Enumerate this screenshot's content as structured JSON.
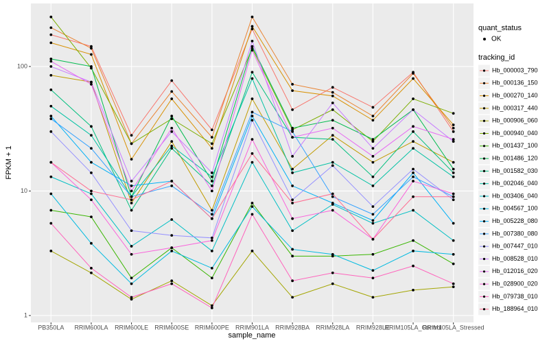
{
  "chart_data": {
    "type": "line",
    "y_scale": "log",
    "grid": true,
    "x_label": "sample_name",
    "y_label": "FPKM + 1",
    "categories": [
      "PB350LA",
      "RRIM600LA",
      "RRIM600LE",
      "RRIM600SE",
      "RRIM600PE",
      "RRIM901LA",
      "RRIM928BA",
      "RRIM928LA",
      "RRIM928LE",
      "RRIM105LA_Control",
      "RRIM105LA_Stressed"
    ],
    "ylim": [
      0.88,
      321
    ],
    "yticks": [
      1,
      10,
      100
    ],
    "point_legend_title": "quant_status",
    "point_legend_label": "OK",
    "legend_title": "tracking_id",
    "series": [
      {
        "name": "Hb_000003_790",
        "color": "#F8766D",
        "values": [
          180,
          145,
          28,
          77,
          31,
          200,
          45,
          68,
          47,
          90,
          30
        ]
      },
      {
        "name": "Hb_000136_150",
        "color": "#EA8331",
        "values": [
          205,
          140,
          24,
          63,
          27,
          250,
          72,
          62,
          40,
          88,
          32
        ]
      },
      {
        "name": "Hb_000270_140",
        "color": "#D89000",
        "values": [
          155,
          125,
          18,
          55,
          22,
          210,
          64,
          58,
          37,
          80,
          34
        ]
      },
      {
        "name": "Hb_000317_440",
        "color": "#C09B00",
        "values": [
          85,
          75,
          8,
          25,
          7,
          55,
          15,
          28,
          17,
          25,
          17
        ]
      },
      {
        "name": "Hb_000906_060",
        "color": "#A3A500",
        "values": [
          3.3,
          2.2,
          1.35,
          1.9,
          1.2,
          3.3,
          1.4,
          1.8,
          1.4,
          1.6,
          1.7
        ]
      },
      {
        "name": "Hb_000940_040",
        "color": "#7CAE00",
        "values": [
          250,
          97,
          24,
          38,
          24,
          140,
          31,
          45,
          25,
          55,
          42
        ]
      },
      {
        "name": "Hb_001437_100",
        "color": "#39B600",
        "values": [
          7,
          6.2,
          2,
          3.5,
          2,
          8,
          3,
          3,
          3.1,
          4,
          2.6
        ]
      },
      {
        "name": "Hb_001486_120",
        "color": "#00BB4E",
        "values": [
          115,
          100,
          9,
          40,
          12,
          145,
          32,
          37,
          26,
          45,
          15
        ]
      },
      {
        "name": "Hb_001582_030",
        "color": "#00BF7D",
        "values": [
          65,
          33,
          7,
          22,
          11,
          90,
          27,
          26,
          13,
          30,
          14
        ]
      },
      {
        "name": "Hb_002046_040",
        "color": "#00C1A3",
        "values": [
          48,
          28,
          9,
          23,
          13,
          80,
          14,
          17,
          11,
          22,
          13
        ]
      },
      {
        "name": "Hb_003406_040",
        "color": "#00BFC4",
        "values": [
          13,
          9.5,
          3.6,
          5.9,
          3.3,
          17,
          4.8,
          7.8,
          5.5,
          7,
          4
        ]
      },
      {
        "name": "Hb_004567_100",
        "color": "#00BAE0",
        "values": [
          9.5,
          3.8,
          1.8,
          3.3,
          2.4,
          7.5,
          3.4,
          3.1,
          2.3,
          3.3,
          3.1
        ]
      },
      {
        "name": "Hb_005228_080",
        "color": "#00B0F6",
        "values": [
          40,
          17,
          11,
          12,
          6,
          40,
          11,
          8,
          5.8,
          14,
          5.5
        ]
      },
      {
        "name": "Hb_007380_080",
        "color": "#35A2FF",
        "values": [
          38,
          22,
          9,
          11,
          6.5,
          43,
          30,
          9,
          6.5,
          13,
          9
        ]
      },
      {
        "name": "Hb_007447_010",
        "color": "#9590FF",
        "values": [
          30,
          14,
          4.8,
          4.4,
          4.2,
          37,
          8.5,
          16,
          7.5,
          15,
          8.5
        ]
      },
      {
        "name": "Hb_008528_010",
        "color": "#C77CFF",
        "values": [
          100,
          75,
          12,
          30,
          14,
          160,
          19,
          51,
          22,
          45,
          25
        ]
      },
      {
        "name": "Hb_012016_020",
        "color": "#E76BF3",
        "values": [
          110,
          72,
          10,
          32,
          10,
          135,
          27,
          32,
          19,
          33,
          26
        ]
      },
      {
        "name": "Hb_028900_020",
        "color": "#FA62DB",
        "values": [
          17,
          8.5,
          3.1,
          3.5,
          4,
          26,
          6,
          7,
          4.1,
          12,
          9.5
        ]
      },
      {
        "name": "Hb_079738_010",
        "color": "#FF62BC",
        "values": [
          5.5,
          2.4,
          1.4,
          1.8,
          1.15,
          6.5,
          1.9,
          2.2,
          2,
          2.5,
          1.8
        ]
      },
      {
        "name": "Hb_188964_010",
        "color": "#FF6C91",
        "values": [
          17,
          10,
          8.5,
          12,
          6,
          20,
          8,
          9.5,
          4.1,
          9,
          9
        ]
      }
    ]
  }
}
